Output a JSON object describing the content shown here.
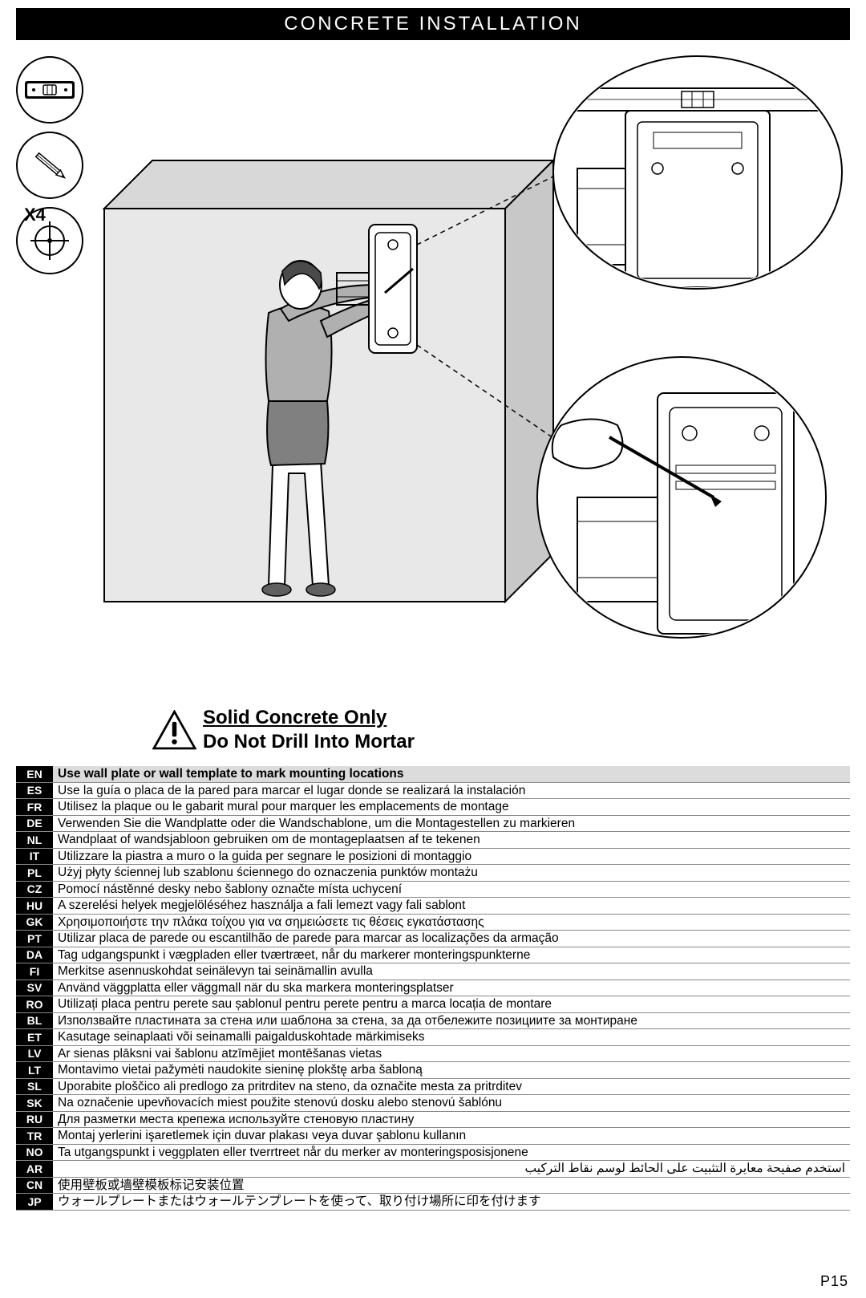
{
  "title": "CONCRETE INSTALLATION",
  "qty_label": "X4",
  "warning": {
    "line1": "Solid Concrete Only",
    "line2": "Do Not Drill Into Mortar"
  },
  "page_number": "P15",
  "colors": {
    "header_bg": "#000000",
    "header_fg": "#ffffff",
    "wall_fill": "#e8e8e8",
    "highlight_bg": "#dcdcdc",
    "row_border": "#888888"
  },
  "rows": [
    {
      "code": "EN",
      "text": "Use wall plate or wall template to mark mounting locations",
      "highlight": true
    },
    {
      "code": "ES",
      "text": "Use la guía o placa de la pared para marcar el lugar donde se realizará la instalación"
    },
    {
      "code": "FR",
      "text": "Utilisez la plaque ou le gabarit mural pour marquer les emplacements de montage"
    },
    {
      "code": "DE",
      "text": "Verwenden Sie die Wandplatte oder die Wandschablone, um die Montagestellen zu markieren"
    },
    {
      "code": "NL",
      "text": "Wandplaat of wandsjabloon gebruiken om de montageplaatsen af te tekenen"
    },
    {
      "code": "IT",
      "text": "Utilizzare la piastra a muro o la guida per segnare le posizioni di montaggio"
    },
    {
      "code": "PL",
      "text": "Użyj płyty ściennej lub szablonu ściennego do oznaczenia punktów montażu"
    },
    {
      "code": "CZ",
      "text": "Pomocí nástěnné desky nebo šablony označte místa uchycení"
    },
    {
      "code": "HU",
      "text": "A szerelési helyek megjelöléséhez használja a fali lemezt vagy fali sablont"
    },
    {
      "code": "GK",
      "text": "Χρησιμοποιήστε την πλάκα τοίχου για να σημειώσετε τις θέσεις εγκατάστασης"
    },
    {
      "code": "PT",
      "text": "Utilizar placa de parede ou escantilhão de parede para marcar as localizações da armação"
    },
    {
      "code": "DA",
      "text": "Tag udgangspunkt i vægpladen eller tværtræet, når du markerer monteringspunkterne"
    },
    {
      "code": "FI",
      "text": "Merkitse asennuskohdat seinälevyn tai seinämallin avulla"
    },
    {
      "code": "SV",
      "text": "Använd väggplatta eller väggmall när du ska markera monteringsplatser"
    },
    {
      "code": "RO",
      "text": "Utilizați placa pentru perete sau șablonul pentru perete pentru a marca locația de montare"
    },
    {
      "code": "BL",
      "text": "Използвайте пластината за стена или шаблона за стена, за да отбележите позициите за монтиране"
    },
    {
      "code": "ET",
      "text": "Kasutage seinaplaati või seinamalli paigalduskohtade märkimiseks"
    },
    {
      "code": "LV",
      "text": "Ar sienas plāksni vai šablonu atzīmējiet montēšanas vietas"
    },
    {
      "code": "LT",
      "text": "Montavimo vietai pažymėti naudokite sieninę plokštę arba šabloną"
    },
    {
      "code": "SL",
      "text": "Uporabite ploščico ali predlogo za pritrditev na steno, da označite mesta za pritrditev"
    },
    {
      "code": "SK",
      "text": "Na označenie upevňovacích miest použite stenovú dosku alebo stenovú šablónu"
    },
    {
      "code": "RU",
      "text": "Для разметки места крепежа используйте стеновую пластину"
    },
    {
      "code": "TR",
      "text": "Montaj yerlerini işaretlemek için duvar plakası veya duvar şablonu kullanın"
    },
    {
      "code": "NO",
      "text": "Ta utgangspunkt i veggplaten eller tverrtreet når du merker av monteringsposisjonene"
    },
    {
      "code": "AR",
      "text": "استخدم صفيحة معايرة التثبيت على الحائط لوسم نقاط التركيب",
      "rtl": true
    },
    {
      "code": "CN",
      "text": "使用壁板或墙壁模板标记安装位置"
    },
    {
      "code": "JP",
      "text": "ウォールプレートまたはウォールテンプレートを使って、取り付け場所に印を付けます"
    }
  ]
}
